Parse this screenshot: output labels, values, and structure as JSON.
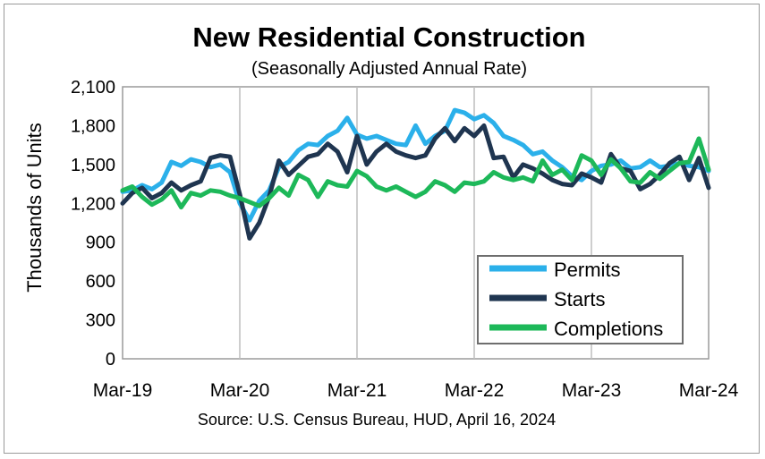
{
  "chart_data": {
    "type": "line",
    "title": "New Residential Construction",
    "subtitle": "(Seasonally Adjusted Annual Rate)",
    "ylabel": "Thousands of Units",
    "xlabel": "",
    "ylim": [
      0,
      2100
    ],
    "yticks": [
      0,
      300,
      600,
      900,
      "1,200",
      "1,500",
      "1,800",
      "2,100"
    ],
    "ytick_values": [
      0,
      300,
      600,
      900,
      1200,
      1500,
      1800,
      2100
    ],
    "xtick_labels": [
      "Mar-19",
      "Mar-20",
      "Mar-21",
      "Mar-22",
      "Mar-23",
      "Mar-24"
    ],
    "xtick_index": [
      0,
      12,
      24,
      36,
      48,
      60
    ],
    "grid": "vertical",
    "legend_position": "bottom-right",
    "source": "Source:  U.S. Census Bureau, HUD, April 16, 2024",
    "series": [
      {
        "name": "Permits",
        "color": "#2bb0ea",
        "values": [
          1290,
          1300,
          1340,
          1310,
          1360,
          1520,
          1490,
          1540,
          1520,
          1480,
          1500,
          1440,
          1200,
          1070,
          1220,
          1300,
          1480,
          1520,
          1610,
          1660,
          1650,
          1720,
          1760,
          1860,
          1730,
          1700,
          1720,
          1690,
          1660,
          1650,
          1800,
          1660,
          1720,
          1760,
          1920,
          1900,
          1850,
          1880,
          1820,
          1720,
          1690,
          1650,
          1580,
          1600,
          1530,
          1480,
          1410,
          1380,
          1450,
          1490,
          1500,
          1530,
          1470,
          1480,
          1530,
          1480,
          1490,
          1510,
          1490,
          1480,
          1450
        ]
      },
      {
        "name": "Starts",
        "color": "#1f3550",
        "values": [
          1200,
          1280,
          1320,
          1240,
          1280,
          1360,
          1300,
          1340,
          1370,
          1550,
          1570,
          1560,
          1270,
          930,
          1050,
          1250,
          1530,
          1420,
          1490,
          1560,
          1580,
          1660,
          1600,
          1440,
          1720,
          1500,
          1600,
          1660,
          1600,
          1570,
          1550,
          1570,
          1700,
          1780,
          1680,
          1780,
          1720,
          1800,
          1550,
          1560,
          1400,
          1500,
          1470,
          1430,
          1380,
          1350,
          1340,
          1430,
          1400,
          1360,
          1580,
          1470,
          1450,
          1310,
          1350,
          1420,
          1510,
          1560,
          1380,
          1550,
          1320
        ]
      },
      {
        "name": "Completions",
        "color": "#1db859",
        "values": [
          1300,
          1330,
          1250,
          1190,
          1230,
          1300,
          1170,
          1280,
          1260,
          1300,
          1290,
          1260,
          1240,
          1210,
          1180,
          1240,
          1320,
          1260,
          1420,
          1380,
          1250,
          1370,
          1340,
          1330,
          1450,
          1410,
          1330,
          1300,
          1330,
          1290,
          1250,
          1290,
          1370,
          1340,
          1290,
          1360,
          1350,
          1370,
          1440,
          1400,
          1380,
          1400,
          1370,
          1530,
          1420,
          1460,
          1380,
          1570,
          1530,
          1420,
          1540,
          1470,
          1370,
          1360,
          1440,
          1390,
          1450,
          1510,
          1520,
          1700,
          1460
        ]
      }
    ]
  }
}
